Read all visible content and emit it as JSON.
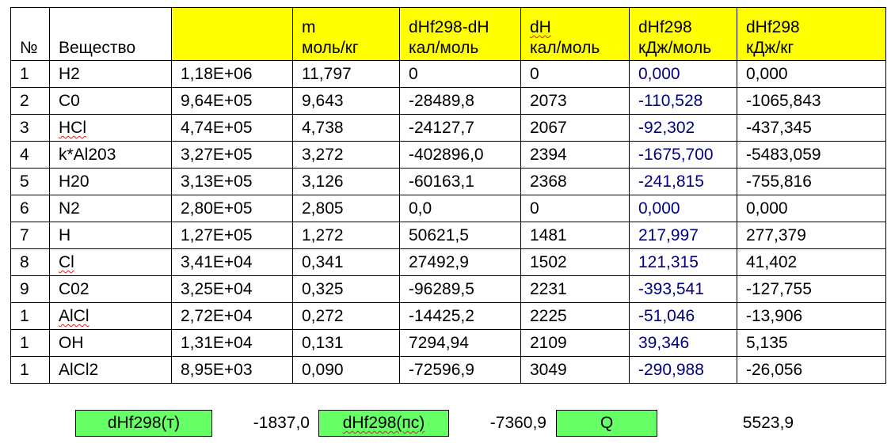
{
  "table": {
    "headers": [
      [
        "№"
      ],
      [
        "Вещество"
      ],
      [
        ""
      ],
      [
        "m",
        "моль/кг"
      ],
      [
        "dHf298-dH",
        "кал/моль"
      ],
      [
        "dH",
        "кал/моль"
      ],
      [
        "dHf298",
        "кДж/моль"
      ],
      [
        "dHf298",
        "кДж/кг"
      ]
    ],
    "header_highlight_color": "#ffff00",
    "blue_value_color": "#000080",
    "rows": [
      [
        "1",
        "H2",
        "1,18E+06",
        "11,797",
        "0",
        "0",
        "0,000",
        "0,000"
      ],
      [
        "2",
        "C0",
        "9,64E+05",
        "9,643",
        "-28489,8",
        "2073",
        "-110,528",
        "-1065,843"
      ],
      [
        "3",
        "HCl",
        "4,74E+05",
        "4,738",
        "-24127,7",
        "2067",
        "-92,302",
        "-437,345"
      ],
      [
        "4",
        "k*Al203",
        "3,27E+05",
        "3,272",
        "-402896,0",
        "2394",
        "-1675,700",
        "-5483,059"
      ],
      [
        "5",
        "H20",
        "3,13E+05",
        "3,126",
        "-60163,1",
        "2368",
        "-241,815",
        "-755,816"
      ],
      [
        "6",
        "N2",
        "2,80E+05",
        "2,805",
        "0,0",
        "0",
        "0,000",
        "0,000"
      ],
      [
        "7",
        "H",
        "1,27E+05",
        "1,272",
        "50621,5",
        "1481",
        "217,997",
        "277,379"
      ],
      [
        "8",
        "Cl",
        "3,41E+04",
        "0,341",
        "27492,9",
        "1502",
        "121,315",
        "41,402"
      ],
      [
        "9",
        "C02",
        "3,25E+04",
        "0,325",
        "-96289,5",
        "2231",
        "-393,541",
        "-127,755"
      ],
      [
        "1",
        "AlCl",
        "2,72E+04",
        "0,272",
        "-14425,2",
        "2225",
        "-51,046",
        "-13,906"
      ],
      [
        "1",
        "OH",
        "1,31E+04",
        "0,131",
        "7294,94",
        "2109",
        "39,346",
        "5,135"
      ],
      [
        "1",
        "AlCl2",
        "8,95E+03",
        "0,090",
        "-72596,9",
        "3049",
        "-290,988",
        "-26,056"
      ]
    ]
  },
  "footer": {
    "box_color": "#66ff66",
    "items": [
      {
        "label": "dHf298(т)",
        "value": "-1837,0"
      },
      {
        "label": "dHf298(пс)",
        "value": "-7360,9"
      },
      {
        "label": "Q",
        "value": "5523,9"
      }
    ]
  }
}
